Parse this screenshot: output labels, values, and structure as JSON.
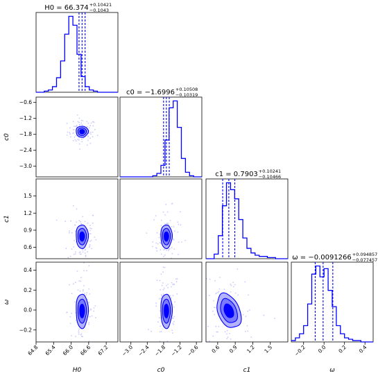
{
  "colors": {
    "line": "#0000ff",
    "fill_outer": "#b3b3ff",
    "fill_mid": "#7a7aff",
    "fill_inner": "#0000ff",
    "points": "#c9c9ff"
  },
  "chart_data": {
    "type": "corner",
    "parameters": [
      {
        "key": "H0",
        "label": "H0",
        "title_main": "H0 = 66.374",
        "title_plus": "+0.10421",
        "title_minus": "−0.1043",
        "median": 66.374,
        "q16": 66.2697,
        "q84": 66.4782,
        "range": [
          64.8,
          67.6
        ],
        "ticks": [
          64.8,
          65.4,
          66.0,
          66.6,
          67.2
        ],
        "tick_labels": [
          "64.8",
          "65.4",
          "66.0",
          "66.6",
          "67.2"
        ]
      },
      {
        "key": "c0",
        "label": "c0",
        "title_main": "c0 = −1.6996",
        "title_plus": "+0.10508",
        "title_minus": "−0.10319",
        "median": -1.6996,
        "q16": -1.8028,
        "q84": -1.5945,
        "range": [
          -3.4,
          -0.4
        ],
        "ticks": [
          -3.0,
          -2.4,
          -1.8,
          -1.2,
          -0.6
        ],
        "tick_labels": [
          "−3.0",
          "−2.4",
          "−1.8",
          "−1.2",
          "−0.6"
        ]
      },
      {
        "key": "c1",
        "label": "c1",
        "title_main": "c1 = 0.7903",
        "title_plus": "+0.10241",
        "title_minus": "−0.10466",
        "median": 0.7903,
        "q16": 0.6856,
        "q84": 0.8927,
        "range": [
          0.4,
          1.8
        ],
        "ticks": [
          0.6,
          0.9,
          1.2,
          1.5
        ],
        "tick_labels": [
          "0.6",
          "0.9",
          "1.2",
          "1.5"
        ]
      },
      {
        "key": "w",
        "label": "ω",
        "title_main": "ω = −0.0091266",
        "title_plus": "+0.094857",
        "title_minus": "−0.077457",
        "median": -0.0091266,
        "q16": -0.086584,
        "q84": 0.085731,
        "range": [
          -0.32,
          0.48
        ],
        "ticks": [
          -0.2,
          0.0,
          0.2,
          0.4
        ],
        "tick_labels": [
          "−0.2",
          "0.0",
          "0.2",
          "0.4"
        ]
      }
    ],
    "histograms": [
      [
        0,
        0,
        1,
        2,
        5,
        13,
        28,
        52,
        68,
        60,
        34,
        14,
        5,
        2,
        1,
        0,
        0,
        0,
        0,
        0
      ],
      [
        0,
        0,
        0,
        0,
        0,
        0,
        0,
        0,
        1,
        3,
        10,
        32,
        60,
        66,
        43,
        16,
        4,
        1,
        0,
        0
      ],
      [
        0,
        0,
        4,
        20,
        46,
        66,
        60,
        52,
        34,
        18,
        9,
        5,
        3,
        2,
        2,
        1,
        1,
        0,
        0,
        0
      ],
      [
        1,
        3,
        6,
        12,
        28,
        50,
        56,
        48,
        54,
        38,
        26,
        12,
        6,
        3,
        2,
        1,
        1,
        0,
        0,
        0
      ]
    ],
    "correlations": {
      "H0_c0": 0.0,
      "H0_c1": 0.0,
      "H0_w": 0.0,
      "c0_c1": 0.0,
      "c0_w": 0.0,
      "c1_w": -0.35
    },
    "contour_levels": [
      "inner",
      "middle",
      "outer"
    ]
  }
}
